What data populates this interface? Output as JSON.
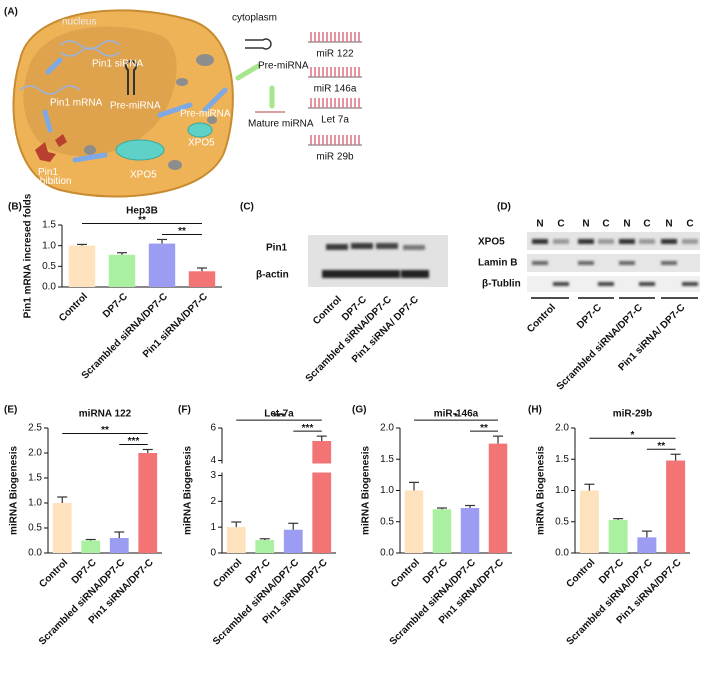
{
  "diagram": {
    "panel": "(A)",
    "nucleus": "nucleus",
    "cytoplasm": "cytoplasm",
    "pin1_sirna": "Pin1 siRNA",
    "pin1_mrna": "Pin1 mRNA",
    "pre_mirna_nucleus": "Pre-miRNA",
    "pin1_inhibition": [
      "Pin1",
      "inhibition"
    ],
    "xpo5": "XPO5",
    "pre_mirna_pore": "Pre-miRNA",
    "xpo5_pore": "XPO5",
    "pre_mirna_cytoplasm": "Pre-miRNA",
    "mature_mirna": "Mature miRNA",
    "mirnas": [
      "miR 122",
      "miR 146a",
      "Let 7a",
      "miR 29b"
    ]
  },
  "blot_c": {
    "panel": "(C)",
    "rows": [
      "Pin1",
      "β-actin"
    ],
    "lanes": [
      "Control",
      "DP7-C",
      "Scrambled siRNA/DP7-C",
      "Pin1 siRNA/ DP7-C"
    ]
  },
  "blot_d": {
    "panel": "(D)",
    "fractions": [
      "N",
      "C",
      "N",
      "C",
      "N",
      "C",
      "N",
      "C"
    ],
    "rows": [
      "XPO5",
      "Lamin B",
      "β-Tublin"
    ],
    "lanes": [
      "Control",
      "DP7-C",
      "Scrambled siRNA/DP7-C",
      "Pin1 siRNA/ DP7-C"
    ]
  },
  "chart_data": [
    {
      "type": "bar",
      "panel": "(B)",
      "title": "Hep3B",
      "ylabel": "Pin1 mRNA incresed folds",
      "categories": [
        "Control",
        "DP7-C",
        "Scrambled siRNA/DP7-C",
        "Pin1 siRNA/DP7-C"
      ],
      "colors": [
        "#fde2bd",
        "#a9f0a0",
        "#9c9cf2",
        "#f27474"
      ],
      "values": [
        1.0,
        0.78,
        1.05,
        0.38
      ],
      "errors": [
        0.03,
        0.05,
        0.1,
        0.08
      ],
      "ylim": [
        0,
        1.5
      ],
      "yticks": [
        {
          "value": 0,
          "label": "0.0"
        },
        {
          "value": 0.5,
          "label": "0.5"
        },
        {
          "value": 1,
          "label": "1.0"
        },
        {
          "value": 1.5,
          "label": "1.5"
        }
      ],
      "annotations": [
        {
          "label": "**",
          "from": 0,
          "to": 3
        },
        {
          "label": "**",
          "from": 2,
          "to": 3
        }
      ]
    },
    {
      "type": "bar",
      "panel": "(E)",
      "title": "miRNA 122",
      "ylabel": "miRNA Biogenesis",
      "categories": [
        "Control",
        "DP7-C",
        "Scrambled siRNA/DP7-C",
        "Pin1 siRNA/DP7-C"
      ],
      "colors": [
        "#fde2bd",
        "#a9f0a0",
        "#9c9cf2",
        "#f27474"
      ],
      "values": [
        1.0,
        0.25,
        0.3,
        2.0
      ],
      "errors": [
        0.12,
        0.02,
        0.12,
        0.07
      ],
      "ylim": [
        0,
        2.5
      ],
      "yticks": [
        {
          "value": 0,
          "label": "0.0"
        },
        {
          "value": 0.5,
          "label": "0.5"
        },
        {
          "value": 1,
          "label": "1.0"
        },
        {
          "value": 1.5,
          "label": "1.5"
        },
        {
          "value": 2,
          "label": "2.0"
        },
        {
          "value": 2.5,
          "label": "2.5"
        }
      ],
      "annotations": [
        {
          "label": "**",
          "from": 0,
          "to": 3
        },
        {
          "label": "***",
          "from": 2,
          "to": 3
        }
      ]
    },
    {
      "type": "bar",
      "panel": "(F)",
      "title": "Let-7a",
      "ylabel": "miRNA Biogenesis",
      "categories": [
        "Control",
        "DP7-C",
        "Scrambled siRNA/DP7-C",
        "Pin1 siRNA/DP7-C"
      ],
      "colors": [
        "#fde2bd",
        "#a9f0a0",
        "#9c9cf2",
        "#f27474"
      ],
      "values": [
        1.0,
        0.5,
        0.9,
        5.2
      ],
      "errors": [
        0.2,
        0.05,
        0.25,
        0.3
      ],
      "ylim": [
        0,
        6
      ],
      "ybreak": [
        3,
        4
      ],
      "yticks": [
        0,
        1,
        2,
        3,
        4,
        6
      ],
      "annotations": [
        {
          "label": "***",
          "from": 0,
          "to": 3
        },
        {
          "label": "***",
          "from": 2,
          "to": 3
        }
      ]
    },
    {
      "type": "bar",
      "panel": "(G)",
      "title": "miR-146a",
      "ylabel": "miRNA Biogenesis",
      "categories": [
        "Control",
        "DP7-C",
        "Scrambled siRNA/DP7-C",
        "Pin1 siRNA/DP7-C"
      ],
      "colors": [
        "#fde2bd",
        "#a9f0a0",
        "#9c9cf2",
        "#f27474"
      ],
      "values": [
        1.0,
        0.7,
        0.72,
        1.75
      ],
      "errors": [
        0.13,
        0.02,
        0.04,
        0.12
      ],
      "ylim": [
        0,
        2
      ],
      "yticks": [
        {
          "value": 0,
          "label": "0.0"
        },
        {
          "value": 0.5,
          "label": "0.5"
        },
        {
          "value": 1,
          "label": "1.0"
        },
        {
          "value": 1.5,
          "label": "1.5"
        },
        {
          "value": 2,
          "label": "2.0"
        }
      ],
      "annotations": [
        {
          "label": "*",
          "from": 0,
          "to": 3
        },
        {
          "label": "**",
          "from": 2,
          "to": 3
        }
      ]
    },
    {
      "type": "bar",
      "panel": "(H)",
      "title": "miR-29b",
      "ylabel": "miRNA Biogenesis",
      "categories": [
        "Control",
        "DP7-C",
        "Scrambled siRNA/DP7-C",
        "Pin1 siRNA/DP7-C"
      ],
      "colors": [
        "#fde2bd",
        "#a9f0a0",
        "#9c9cf2",
        "#f27474"
      ],
      "values": [
        1.0,
        0.53,
        0.25,
        1.48
      ],
      "errors": [
        0.1,
        0.02,
        0.1,
        0.1
      ],
      "ylim": [
        0,
        2
      ],
      "yticks": [
        {
          "value": 0,
          "label": "0.0"
        },
        {
          "value": 0.5,
          "label": "0.5"
        },
        {
          "value": 1,
          "label": "1.0"
        },
        {
          "value": 1.5,
          "label": "1.5"
        },
        {
          "value": 2,
          "label": "2.0"
        }
      ],
      "annotations": [
        {
          "label": "*",
          "from": 0,
          "to": 3
        },
        {
          "label": "**",
          "from": 2,
          "to": 3
        }
      ]
    }
  ]
}
